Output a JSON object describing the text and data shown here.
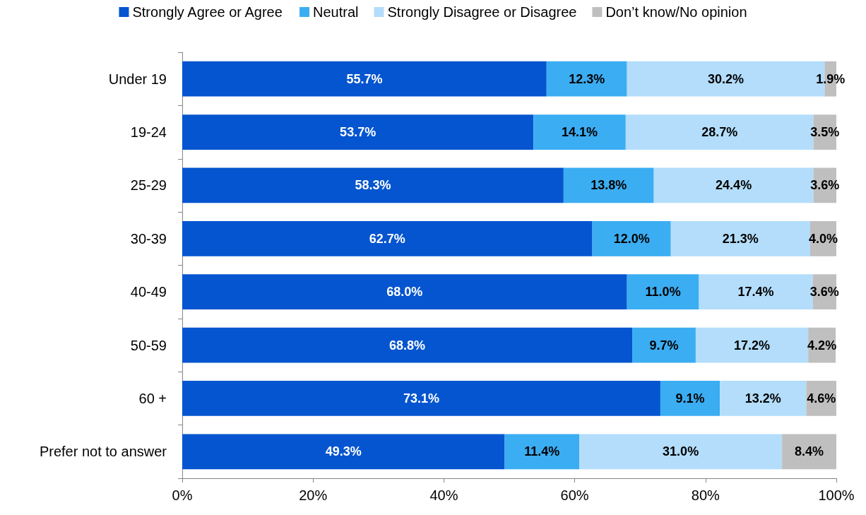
{
  "chart_data": {
    "type": "bar",
    "orientation": "horizontal",
    "stacked": true,
    "categories": [
      "Under 19",
      "19-24",
      "25-29",
      "30-39",
      "40-49",
      "50-59",
      "60 +",
      "Prefer not to answer"
    ],
    "series": [
      {
        "name": "Strongly Agree or Agree",
        "color": "#0455cf",
        "values": [
          55.7,
          53.7,
          58.3,
          62.7,
          68.0,
          68.8,
          73.1,
          49.3
        ],
        "value_labels": [
          "55.7%",
          "53.7%",
          "58.3%",
          "62.7%",
          "68.0%",
          "68.8%",
          "73.1%",
          "49.3%"
        ]
      },
      {
        "name": "Neutral",
        "color": "#3badf2",
        "values": [
          12.3,
          14.1,
          13.8,
          12.0,
          11.0,
          9.7,
          9.1,
          11.4
        ],
        "value_labels": [
          "12.3%",
          "14.1%",
          "13.8%",
          "12.0%",
          "11.0%",
          "9.7%",
          "9.1%",
          "11.4%"
        ]
      },
      {
        "name": "Strongly Disagree or Disagree",
        "color": "#b3ddfb",
        "values": [
          30.2,
          28.7,
          24.4,
          21.3,
          17.4,
          17.2,
          13.2,
          31.0
        ],
        "value_labels": [
          "30.2%",
          "28.7%",
          "24.4%",
          "21.3%",
          "17.4%",
          "17.2%",
          "13.2%",
          "31.0%"
        ]
      },
      {
        "name": "Don’t know/No opinion",
        "color": "#bfbfbf",
        "values": [
          1.9,
          3.5,
          3.6,
          4.0,
          3.6,
          4.2,
          4.6,
          8.4
        ],
        "value_labels": [
          "1.9%",
          "3.5%",
          "3.6%",
          "4.0%",
          "3.6%",
          "4.2%",
          "4.6%",
          "8.4%"
        ]
      }
    ],
    "xlim": [
      0,
      100
    ],
    "xticks": [
      {
        "value": 0,
        "label": "0%"
      },
      {
        "value": 20,
        "label": "20%"
      },
      {
        "value": 40,
        "label": "40%"
      },
      {
        "value": 60,
        "label": "60%"
      },
      {
        "value": 80,
        "label": "80%"
      },
      {
        "value": 100,
        "label": "100%"
      }
    ],
    "grid": false,
    "legend": "top"
  }
}
